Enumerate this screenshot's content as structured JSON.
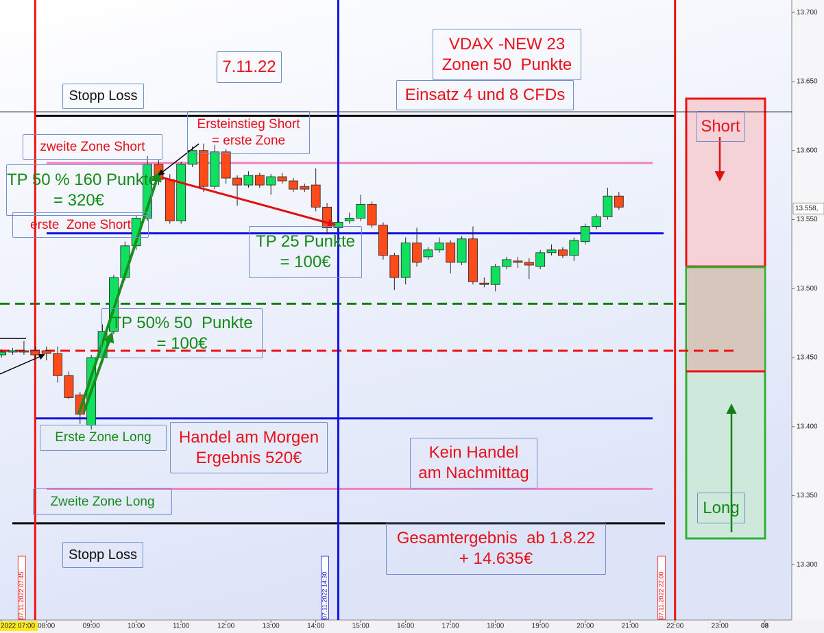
{
  "chart_data": {
    "type": "candlestick",
    "x": [
      "07:00",
      "07:15",
      "07:30",
      "07:45",
      "08:00",
      "08:15",
      "08:30",
      "08:45",
      "09:00",
      "09:15",
      "09:30",
      "09:45",
      "10:00",
      "10:15",
      "10:30",
      "10:45",
      "11:00",
      "11:15",
      "11:30",
      "11:45",
      "12:00",
      "12:15",
      "12:30",
      "12:45",
      "13:00",
      "13:15",
      "13:30",
      "13:45",
      "14:00",
      "14:15",
      "14:30",
      "14:45",
      "15:00",
      "15:15",
      "15:30",
      "15:45",
      "16:00",
      "16:15",
      "16:30",
      "16:45",
      "17:00",
      "17:15",
      "17:30",
      "17:45",
      "18:00",
      "18:15",
      "18:30",
      "18:45",
      "19:00",
      "19:15",
      "19:30",
      "19:45",
      "20:00",
      "20:15",
      "20:30",
      "20:45"
    ],
    "open": [
      13452,
      13454,
      13455,
      13455,
      13455,
      13453,
      13437,
      13423,
      13401,
      13450,
      13469,
      13508,
      13531,
      13551,
      13590,
      13579,
      13549,
      13590,
      13600,
      13574,
      13599,
      13580,
      13575,
      13582,
      13575,
      13581,
      13578,
      13574,
      13575,
      13559,
      13544,
      13549,
      13551,
      13561,
      13546,
      13524,
      13508,
      13533,
      13523,
      13528,
      13533,
      13519,
      13536,
      13504,
      13503,
      13516,
      13520,
      13519,
      13516,
      13526,
      13528,
      13524,
      13534,
      13545,
      13552,
      13567
    ],
    "high": [
      13456,
      13457,
      13462,
      13458,
      13458,
      13458,
      13440,
      13425,
      13452,
      13474,
      13510,
      13534,
      13553,
      13596,
      13593,
      13583,
      13592,
      13603,
      13605,
      13604,
      13601,
      13582,
      13585,
      13584,
      13583,
      13584,
      13580,
      13576,
      13587,
      13562,
      13550,
      13555,
      13568,
      13563,
      13548,
      13526,
      13537,
      13544,
      13530,
      13537,
      13535,
      13538,
      13545,
      13508,
      13518,
      13523,
      13523,
      13522,
      13528,
      13532,
      13530,
      13537,
      13547,
      13554,
      13573,
      13570
    ],
    "low": [
      13450,
      13452,
      13452,
      13449,
      13448,
      13432,
      13420,
      13402,
      13398,
      13448,
      13467,
      13506,
      13528,
      13549,
      13575,
      13547,
      13547,
      13588,
      13570,
      13572,
      13576,
      13560,
      13573,
      13573,
      13568,
      13576,
      13570,
      13570,
      13556,
      13540,
      13542,
      13547,
      13549,
      13544,
      13521,
      13499,
      13503,
      13516,
      13521,
      13526,
      13511,
      13517,
      13503,
      13501,
      13498,
      13514,
      13515,
      13507,
      13514,
      13524,
      13522,
      13520,
      13532,
      13543,
      13550,
      13557
    ],
    "close": [
      13454,
      13455,
      13454,
      13452,
      13453,
      13437,
      13421,
      13409,
      13450,
      13469,
      13508,
      13531,
      13551,
      13590,
      13579,
      13549,
      13590,
      13600,
      13574,
      13599,
      13580,
      13575,
      13582,
      13575,
      13581,
      13578,
      13572,
      13572,
      13559,
      13544,
      13548,
      13551,
      13561,
      13546,
      13524,
      13508,
      13533,
      13519,
      13528,
      13533,
      13519,
      13536,
      13505,
      13503,
      13516,
      13521,
      13519,
      13517,
      13526,
      13528,
      13524,
      13535,
      13545,
      13552,
      13567,
      13559
    ],
    "up_color": "#10e060",
    "down_color": "#ff4a1a",
    "ylim": [
      13260,
      13709
    ],
    "yticks": [
      {
        "value": 13700,
        "label": "13.700"
      },
      {
        "value": 13650,
        "label": "13.650"
      },
      {
        "value": 13600,
        "label": "13.600"
      },
      {
        "value": 13550,
        "label": "13.550"
      },
      {
        "value": 13500,
        "label": "13.500"
      },
      {
        "value": 13450,
        "label": "13.450"
      },
      {
        "value": 13400,
        "label": "13.400"
      },
      {
        "value": 13350,
        "label": "13.350"
      },
      {
        "value": 13300,
        "label": "13.300"
      }
    ],
    "xlim": [
      "06:58",
      "24:36"
    ],
    "xticks": [
      {
        "value": "07:00",
        "label": "2022 07:00"
      },
      "08:00",
      "09:00",
      "10:00",
      "11:00",
      "12:00",
      "13:00",
      "14:00",
      "15:00",
      "16:00",
      "17:00",
      "18:00",
      "19:00",
      "20:00",
      "21:00",
      "22:00",
      "23:00",
      {
        "value": "24:00",
        "label": "08"
      }
    ],
    "last_price": {
      "value": 13558,
      "label": "13.558,"
    },
    "levels": [
      {
        "value": 13628,
        "color": "#000000",
        "dash": false
      },
      {
        "value": 13625,
        "color": "#000000",
        "dash": false
      },
      {
        "value": 13591,
        "color": "#f080c0",
        "dash": false
      },
      {
        "value": 13540,
        "color": "#1010e0",
        "dash": false
      },
      {
        "value": 13489,
        "color": "#108010",
        "dash": true
      },
      {
        "value": 13455,
        "color": "#f01010",
        "dash": true
      },
      {
        "value": 13406,
        "color": "#1010e0",
        "dash": false
      },
      {
        "value": 13355,
        "color": "#f080c0",
        "dash": false
      },
      {
        "value": 13330,
        "color": "#000000",
        "dash": false
      }
    ],
    "markers": [
      {
        "x": "07:45",
        "color": "#f01010",
        "label": "07.11.2022 07:45"
      },
      {
        "x": "14:30",
        "color": "#1010e0",
        "label": "07.11.2022 14:30"
      },
      {
        "x": "22:00",
        "color": "#f01010",
        "label": "07.11.2022 22:00"
      }
    ]
  },
  "annotations": [
    {
      "lines": [
        "VDAX -NEW 23",
        "Zonen 50  Punkte"
      ]
    },
    {
      "lines": [
        "7.11.22"
      ]
    },
    {
      "lines": [
        "Stopp Loss"
      ]
    },
    {
      "lines": [
        "Einsatz 4 und 8 CFDs"
      ]
    },
    {
      "lines": [
        "Ersteinstieg Short",
        "= erste Zone"
      ]
    },
    {
      "lines": [
        "zweite Zone Short"
      ]
    },
    {
      "lines": [
        "TP 50 % 160 Punkte",
        "= 320€"
      ]
    },
    {
      "lines": [
        "erste  Zone Short"
      ]
    },
    {
      "lines": [
        "TP 25 Punkte",
        "= 100€"
      ]
    },
    {
      "lines": [
        "TP 50% 50  Punkte",
        "= 100€"
      ]
    },
    {
      "lines": [
        "Erste Zone Long"
      ]
    },
    {
      "lines": [
        "Handel am Morgen",
        "Ergebnis 520€"
      ]
    },
    {
      "lines": [
        "Kein Handel",
        "am Nachmittag"
      ]
    },
    {
      "lines": [
        "Zweite Zone Long"
      ]
    },
    {
      "lines": [
        "Stopp Loss"
      ]
    },
    {
      "lines": [
        "Gesamtergebnis  ab 1.8.22",
        "+ 14.635€"
      ]
    },
    {
      "lines": [
        "Short"
      ]
    },
    {
      "lines": [
        "Long"
      ]
    }
  ]
}
